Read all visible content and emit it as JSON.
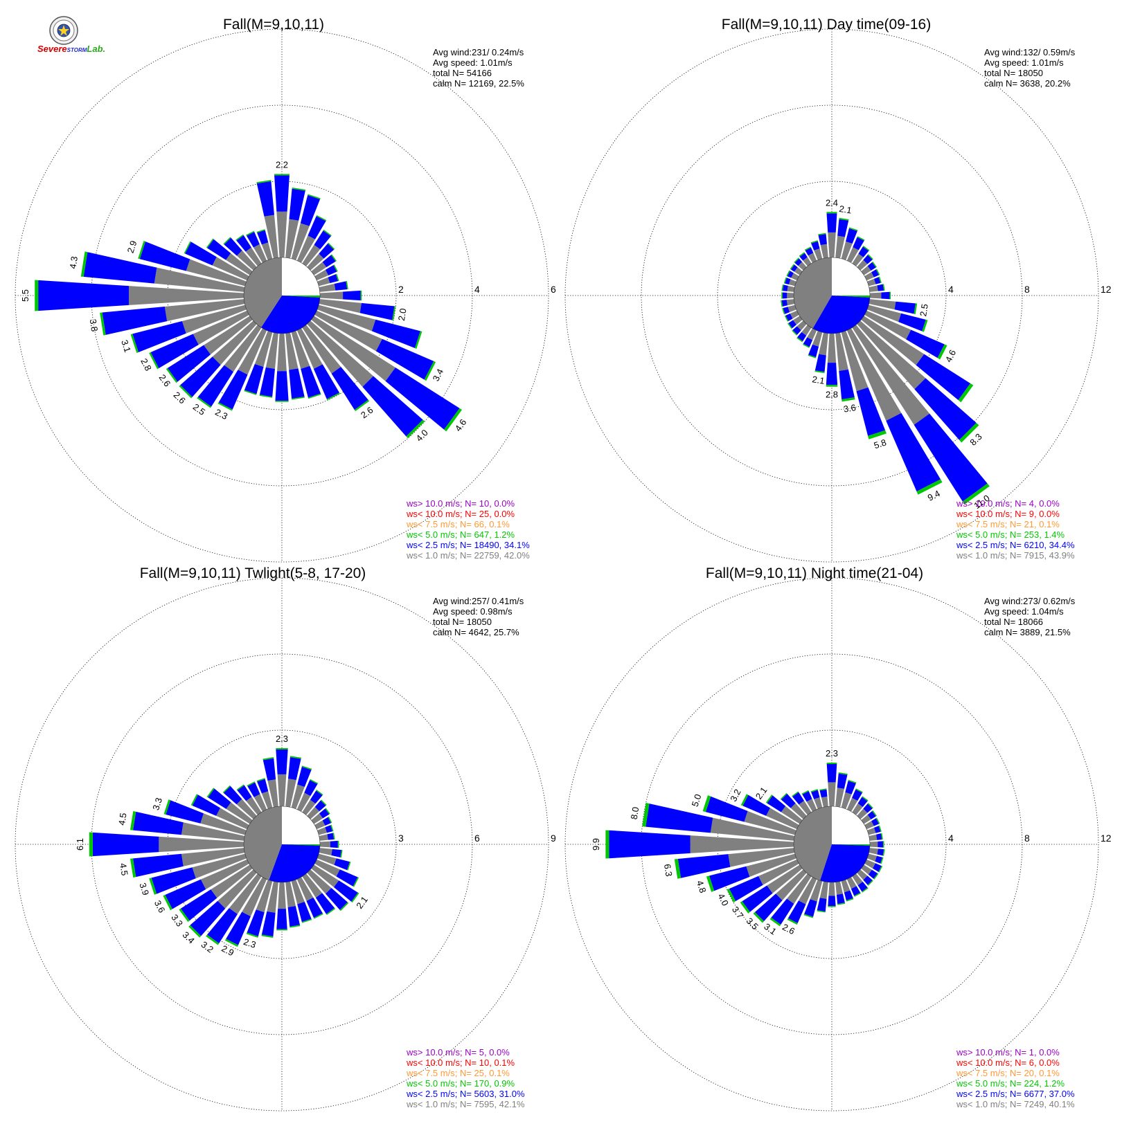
{
  "logo": {
    "text_severe": "Severe",
    "text_storm": "STORM",
    "text_lab": "Lab.",
    "colors": {
      "severe": "#d40000",
      "storm": "#1f2bd6",
      "lab": "#2aa81d",
      "seal": "#555555"
    }
  },
  "legend_colors": {
    "ws_gt_10": "#9a00c8",
    "ws_lt_10": "#ff0000",
    "ws_lt_7_5": "#ff9933",
    "ws_lt_5": "#00c800",
    "ws_lt_2_5": "#0000ff",
    "ws_lt_1": "#808080"
  },
  "chart_data": [
    {
      "type": "wind-rose",
      "title": "Fall(M=9,10,11)",
      "rmax": 6,
      "ring_labels": [
        "2",
        "4",
        "6"
      ],
      "ring_values": [
        2,
        4,
        6
      ],
      "stats": [
        "Avg wind:231/ 0.24m/s",
        "Avg speed: 1.01m/s",
        "total N=       54166",
        "calm N=  12169,  22.5%"
      ],
      "calm_sectors": {
        "white": [
          0,
          90
        ],
        "green": [
          90,
          93
        ],
        "blue": [
          93,
          213
        ],
        "gray": [
          213,
          360
        ]
      },
      "direction_totals": [
        2.2,
        1.85,
        1.75,
        1.3,
        1.05,
        0.85,
        0.7,
        0.6,
        0.55,
        0.75,
        1.1,
        2.0,
        2.8,
        3.4,
        4.6,
        4.0,
        2.6,
        2.0,
        1.8,
        1.75,
        1.8,
        1.7,
        1.7,
        2.3,
        2.5,
        2.6,
        2.6,
        2.8,
        3.1,
        3.8,
        5.5,
        4.3,
        2.9,
        1.8,
        1.35,
        1.05,
        0.9,
        0.85,
        0.8,
        2.05
      ],
      "total_labels": [
        {
          "dir": 0,
          "text": "2.2"
        },
        {
          "dir": 11,
          "text": "2.0"
        },
        {
          "dir": 13,
          "text": "3.4"
        },
        {
          "dir": 14,
          "text": "4.6"
        },
        {
          "dir": 15,
          "text": "4.0"
        },
        {
          "dir": 16,
          "text": "2.6"
        },
        {
          "dir": 23,
          "text": "2.3"
        },
        {
          "dir": 24,
          "text": "2.5"
        },
        {
          "dir": 25,
          "text": "2.6"
        },
        {
          "dir": 26,
          "text": "2.6"
        },
        {
          "dir": 27,
          "text": "2.8"
        },
        {
          "dir": 28,
          "text": "3.1"
        },
        {
          "dir": 29,
          "text": "3.8"
        },
        {
          "dir": 30,
          "text": "5.5"
        },
        {
          "dir": 31,
          "text": "4.3"
        },
        {
          "dir": 32,
          "text": "2.9"
        }
      ],
      "legend": [
        "ws> 10.0 m/s; N=     10,  0.0%",
        "ws< 10.0 m/s; N=     25,  0.0%",
        "ws<  7.5 m/s; N=     66,  0.1%",
        "ws<  5.0 m/s; N=   647,  1.2%",
        "ws<  2.5 m/s; N= 18490, 34.1%",
        "ws<  1.0 m/s; N= 22759, 42.0%"
      ]
    },
    {
      "type": "wind-rose",
      "title": "Fall(M=9,10,11) Day time(09-16)",
      "rmax": 12,
      "ring_labels": [
        "4",
        "8",
        "12"
      ],
      "ring_values": [
        4,
        8,
        12
      ],
      "stats": [
        "Avg wind:132/ 0.59m/s",
        "Avg speed: 1.01m/s",
        "total N=       18050",
        "calm N=   3638,  20.2%"
      ],
      "calm_sectors": {
        "white": [
          0,
          90
        ],
        "green": [
          90,
          93
        ],
        "blue": [
          93,
          210
        ],
        "gray": [
          210,
          360
        ]
      },
      "direction_totals": [
        2.4,
        2.1,
        1.7,
        1.4,
        1.1,
        0.9,
        0.8,
        0.75,
        0.7,
        0.8,
        1.1,
        2.5,
        3.2,
        4.6,
        6.8,
        8.3,
        11.0,
        9.4,
        5.8,
        3.6,
        2.8,
        2.1,
        1.4,
        1.0,
        0.9,
        0.8,
        0.75,
        0.7,
        0.7,
        0.7,
        0.65,
        0.65,
        0.6,
        0.6,
        0.6,
        0.65,
        0.7,
        0.8,
        1.0,
        1.3
      ],
      "total_labels": [
        {
          "dir": 0,
          "text": "2.4"
        },
        {
          "dir": 1,
          "text": "2.1"
        },
        {
          "dir": 11,
          "text": "2.5"
        },
        {
          "dir": 13,
          "text": "4.6"
        },
        {
          "dir": 15,
          "text": "8.3"
        },
        {
          "dir": 16,
          "text": "11.0"
        },
        {
          "dir": 17,
          "text": "9.4"
        },
        {
          "dir": 18,
          "text": "5.8"
        },
        {
          "dir": 19,
          "text": "3.6"
        },
        {
          "dir": 20,
          "text": "2.8"
        },
        {
          "dir": 21,
          "text": "2.1"
        }
      ],
      "legend": [
        "ws> 10.0 m/s; N=      4,  0.0%",
        "ws< 10.0 m/s; N=      9,  0.0%",
        "ws<  7.5 m/s; N=     21,  0.1%",
        "ws<  5.0 m/s; N=   253,  1.4%",
        "ws<  2.5 m/s; N=  6210, 34.4%",
        "ws<  1.0 m/s; N=  7915, 43.9%"
      ]
    },
    {
      "type": "wind-rose",
      "title": "Fall(M=9,10,11) Twlight(5-8, 17-20)",
      "rmax": 9,
      "ring_labels": [
        "3",
        "6",
        "9"
      ],
      "ring_values": [
        3,
        6,
        9
      ],
      "stats": [
        "Avg wind:257/ 0.41m/s",
        "Avg speed: 0.98m/s",
        "total N=       18050",
        "calm N=   4642,  25.7%"
      ],
      "calm_sectors": {
        "white": [
          0,
          90
        ],
        "green": [
          90,
          92
        ],
        "blue": [
          92,
          200
        ],
        "gray": [
          200,
          360
        ]
      },
      "direction_totals": [
        2.3,
        2.0,
        1.7,
        1.3,
        1.05,
        0.85,
        0.75,
        0.65,
        0.6,
        0.6,
        0.75,
        0.9,
        1.3,
        1.8,
        2.1,
        2.0,
        1.8,
        1.7,
        1.7,
        1.8,
        1.9,
        2.2,
        2.3,
        2.9,
        3.2,
        3.4,
        3.3,
        3.6,
        3.9,
        4.5,
        6.1,
        4.5,
        3.3,
        2.4,
        2.0,
        1.6,
        1.3,
        1.2,
        1.2,
        1.95
      ],
      "total_labels": [
        {
          "dir": 0,
          "text": "2.3"
        },
        {
          "dir": 14,
          "text": "2.1"
        },
        {
          "dir": 22,
          "text": "2.3"
        },
        {
          "dir": 23,
          "text": "2.9"
        },
        {
          "dir": 24,
          "text": "3.2"
        },
        {
          "dir": 25,
          "text": "3.4"
        },
        {
          "dir": 26,
          "text": "3.3"
        },
        {
          "dir": 27,
          "text": "3.6"
        },
        {
          "dir": 28,
          "text": "3.9"
        },
        {
          "dir": 29,
          "text": "4.5"
        },
        {
          "dir": 30,
          "text": "6.1"
        },
        {
          "dir": 31,
          "text": "4.5"
        },
        {
          "dir": 32,
          "text": "3.3"
        }
      ],
      "legend": [
        "ws> 10.0 m/s; N=      5,  0.0%",
        "ws< 10.0 m/s; N=     10,  0.1%",
        "ws<  7.5 m/s; N=     25,  0.1%",
        "ws<  5.0 m/s; N=   170,  0.9%",
        "ws<  2.5 m/s; N=  5603, 31.0%",
        "ws<  1.0 m/s; N=  7595, 42.1%"
      ]
    },
    {
      "type": "wind-rose",
      "title": "Fall(M=9,10,11) Night time(21-04)",
      "rmax": 12,
      "ring_labels": [
        "4",
        "8",
        "12"
      ],
      "ring_values": [
        4,
        8,
        12
      ],
      "stats": [
        "Avg wind:273/ 0.62m/s",
        "Avg speed: 1.04m/s",
        "total N=       18066",
        "calm N=   3889,  21.5%"
      ],
      "calm_sectors": {
        "white": [
          0,
          90
        ],
        "green": [
          90,
          92
        ],
        "blue": [
          92,
          198
        ],
        "gray": [
          198,
          360
        ]
      },
      "direction_totals": [
        2.3,
        1.8,
        1.5,
        1.2,
        1.0,
        0.9,
        0.8,
        0.75,
        0.7,
        0.7,
        0.75,
        0.8,
        0.8,
        0.9,
        0.9,
        0.9,
        1.0,
        1.0,
        1.1,
        1.2,
        1.3,
        1.6,
        2.0,
        2.6,
        3.1,
        3.5,
        3.7,
        4.0,
        4.8,
        6.3,
        9.9,
        8.0,
        5.0,
        3.2,
        2.1,
        1.6,
        1.3,
        1.1,
        1.0,
        0.95
      ],
      "total_labels": [
        {
          "dir": 0,
          "text": "2.3"
        },
        {
          "dir": 23,
          "text": "2.6"
        },
        {
          "dir": 24,
          "text": "3.1"
        },
        {
          "dir": 25,
          "text": "3.5"
        },
        {
          "dir": 26,
          "text": "3.7"
        },
        {
          "dir": 27,
          "text": "4.0"
        },
        {
          "dir": 28,
          "text": "4.8"
        },
        {
          "dir": 29,
          "text": "6.3"
        },
        {
          "dir": 30,
          "text": "9.9"
        },
        {
          "dir": 31,
          "text": "8.0"
        },
        {
          "dir": 32,
          "text": "5.0"
        },
        {
          "dir": 33,
          "text": "3.2"
        },
        {
          "dir": 34,
          "text": "2.1"
        }
      ],
      "legend": [
        "ws> 10.0 m/s; N=      1,  0.0%",
        "ws< 10.0 m/s; N=      6,  0.0%",
        "ws<  7.5 m/s; N=     20,  0.1%",
        "ws<  5.0 m/s; N=   224,  1.2%",
        "ws<  2.5 m/s; N=  6677, 37.0%",
        "ws<  1.0 m/s; N=  7249, 40.1%"
      ]
    }
  ]
}
